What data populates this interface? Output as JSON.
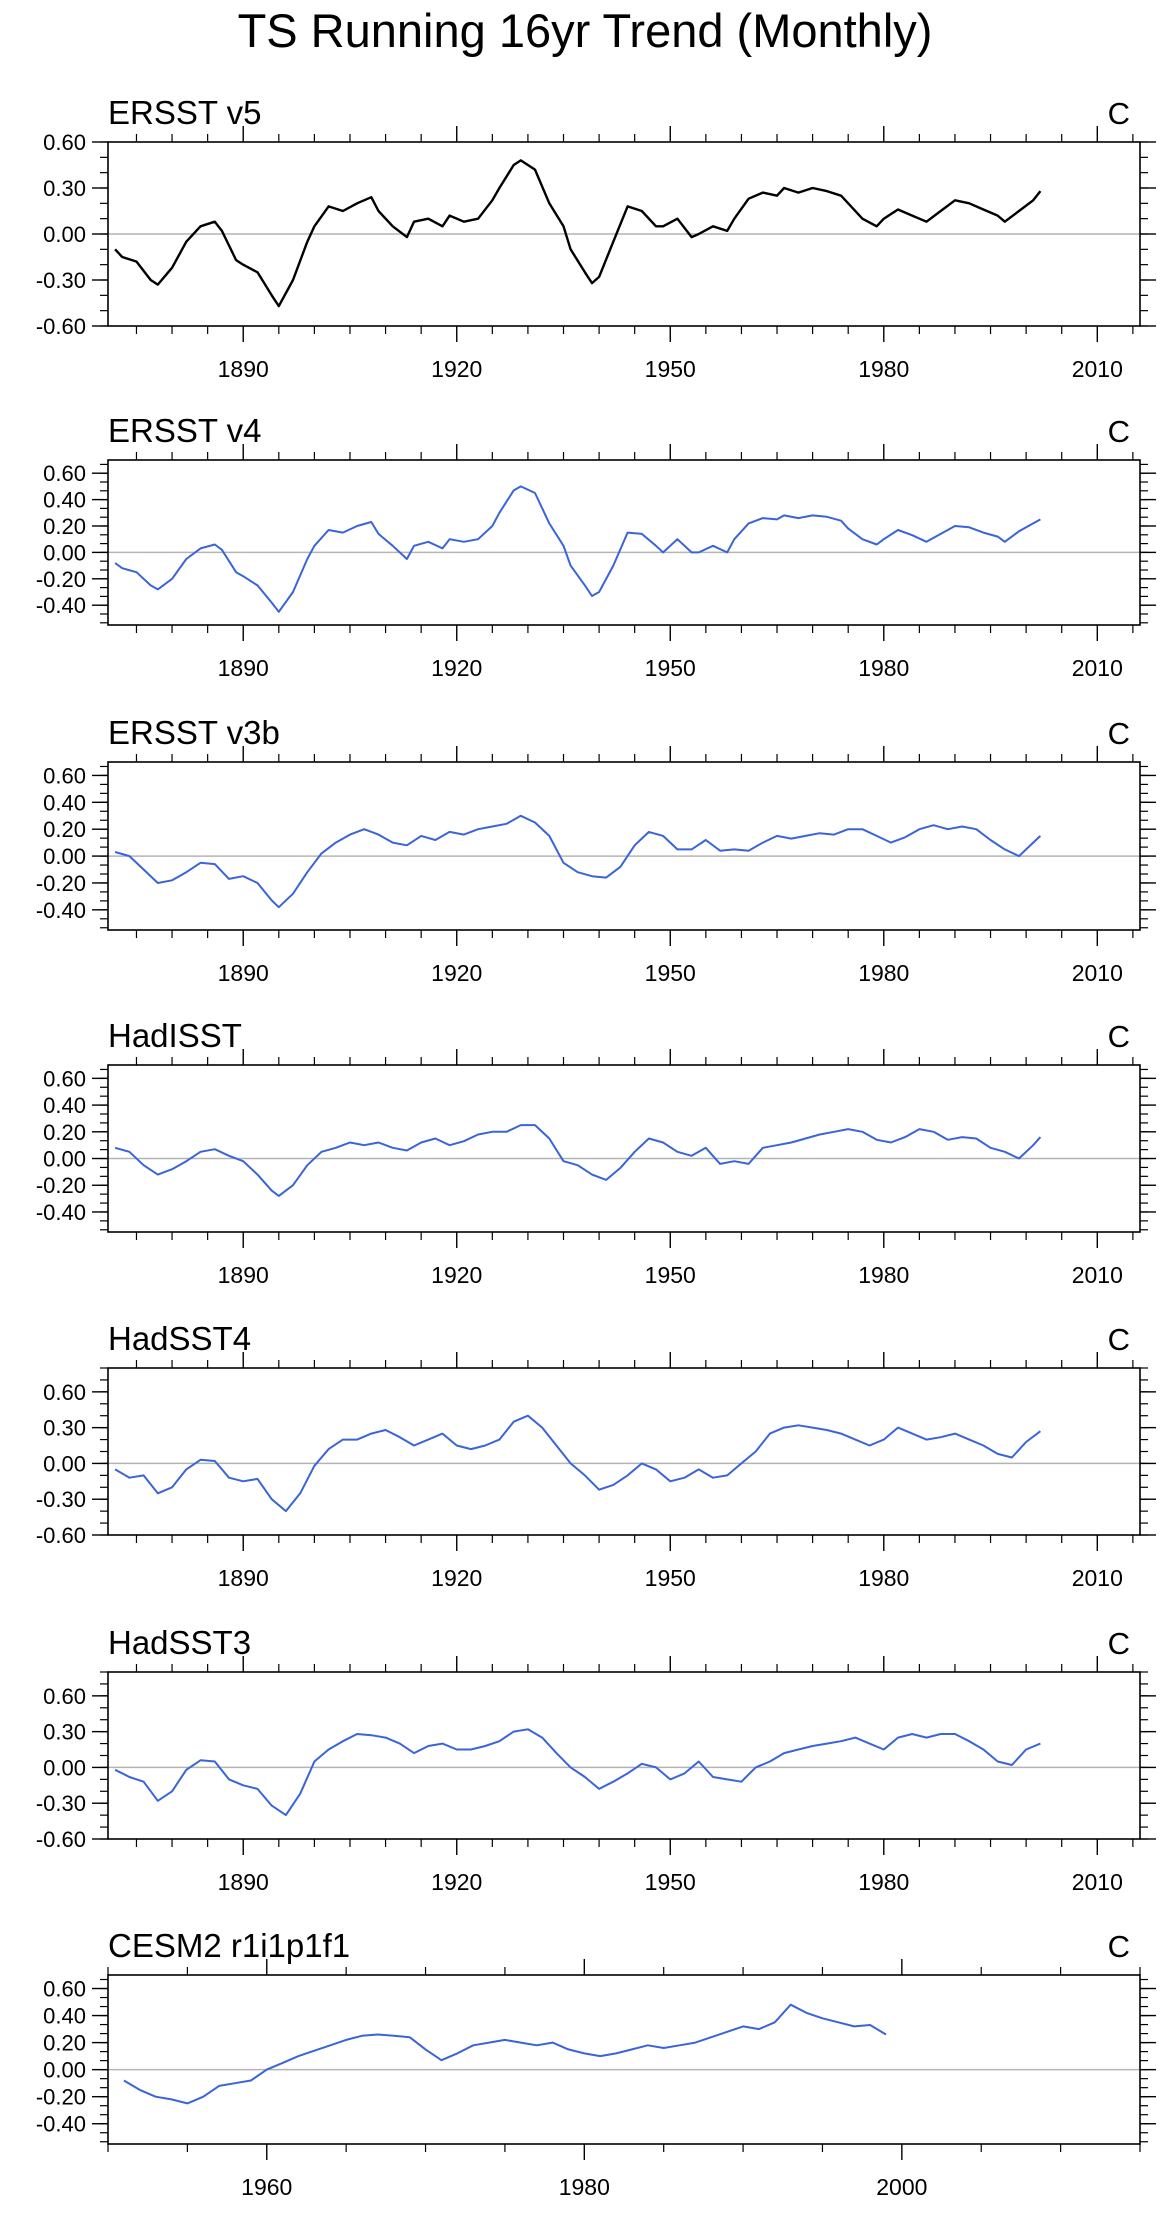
{
  "title": "TS Running 16yr Trend (Monthly)",
  "colors": {
    "first_series": "#000000",
    "other_series": "#3a64d8",
    "frame": "#000000",
    "zero_line": "#b4b4b4"
  },
  "chart_data": [
    {
      "type": "line",
      "title": "ERSST v5",
      "units": "C",
      "xlim": [
        1871,
        2016
      ],
      "ylim": [
        -0.6,
        0.6
      ],
      "xticks": [
        1890,
        1920,
        1950,
        1980,
        2010
      ],
      "yticks": [
        -0.6,
        -0.3,
        0.0,
        0.3,
        0.6
      ],
      "ytick_labels": [
        "-0.60",
        "-0.30",
        "0.00",
        "0.30",
        "0.60"
      ],
      "series_color": "first_series",
      "x": [
        1872,
        1873,
        1875,
        1877,
        1878,
        1880,
        1882,
        1884,
        1886,
        1887,
        1889,
        1890,
        1892,
        1894,
        1895,
        1897,
        1899,
        1900,
        1902,
        1904,
        1906,
        1908,
        1909,
        1911,
        1913,
        1914,
        1916,
        1918,
        1919,
        1921,
        1923,
        1925,
        1926,
        1928,
        1929,
        1931,
        1933,
        1935,
        1936,
        1938,
        1939,
        1940,
        1942,
        1944,
        1946,
        1948,
        1949,
        1951,
        1953,
        1954,
        1956,
        1958,
        1959,
        1961,
        1963,
        1965,
        1966,
        1968,
        1970,
        1972,
        1974,
        1975,
        1977,
        1979,
        1980,
        1982,
        1984,
        1986,
        1988,
        1990,
        1992,
        1994,
        1996,
        1997,
        1999,
        2001,
        2002
      ],
      "y": [
        -0.1,
        -0.15,
        -0.18,
        -0.3,
        -0.33,
        -0.22,
        -0.05,
        0.05,
        0.08,
        0.02,
        -0.17,
        -0.2,
        -0.25,
        -0.4,
        -0.47,
        -0.3,
        -0.05,
        0.05,
        0.18,
        0.15,
        0.2,
        0.24,
        0.15,
        0.05,
        -0.02,
        0.08,
        0.1,
        0.05,
        0.12,
        0.08,
        0.1,
        0.22,
        0.3,
        0.45,
        0.48,
        0.42,
        0.2,
        0.05,
        -0.1,
        -0.25,
        -0.32,
        -0.28,
        -0.05,
        0.18,
        0.15,
        0.05,
        0.05,
        0.1,
        -0.02,
        0.0,
        0.05,
        0.02,
        0.1,
        0.23,
        0.27,
        0.25,
        0.3,
        0.27,
        0.3,
        0.28,
        0.25,
        0.2,
        0.1,
        0.05,
        0.1,
        0.16,
        0.12,
        0.08,
        0.15,
        0.22,
        0.2,
        0.16,
        0.12,
        0.08,
        0.15,
        0.22,
        0.28
      ]
    },
    {
      "type": "line",
      "title": "ERSST v4",
      "units": "C",
      "xlim": [
        1871,
        2016
      ],
      "ylim": [
        -0.55,
        0.7
      ],
      "xticks": [
        1890,
        1920,
        1950,
        1980,
        2010
      ],
      "yticks": [
        -0.4,
        -0.2,
        0.0,
        0.2,
        0.4,
        0.6
      ],
      "ytick_labels": [
        "-0.40",
        "-0.20",
        "0.00",
        "0.20",
        "0.40",
        "0.60"
      ],
      "series_color": "other_series",
      "x": [
        1872,
        1873,
        1875,
        1877,
        1878,
        1880,
        1882,
        1884,
        1886,
        1887,
        1889,
        1890,
        1892,
        1894,
        1895,
        1897,
        1899,
        1900,
        1902,
        1904,
        1906,
        1908,
        1909,
        1911,
        1913,
        1914,
        1916,
        1918,
        1919,
        1921,
        1923,
        1925,
        1926,
        1928,
        1929,
        1931,
        1933,
        1935,
        1936,
        1938,
        1939,
        1940,
        1942,
        1944,
        1946,
        1948,
        1949,
        1951,
        1953,
        1954,
        1956,
        1958,
        1959,
        1961,
        1963,
        1965,
        1966,
        1968,
        1970,
        1972,
        1974,
        1975,
        1977,
        1979,
        1980,
        1982,
        1984,
        1986,
        1988,
        1990,
        1992,
        1994,
        1996,
        1997,
        1999,
        2001,
        2002
      ],
      "y": [
        -0.08,
        -0.12,
        -0.15,
        -0.25,
        -0.28,
        -0.2,
        -0.05,
        0.03,
        0.06,
        0.02,
        -0.15,
        -0.18,
        -0.25,
        -0.38,
        -0.45,
        -0.3,
        -0.05,
        0.05,
        0.17,
        0.15,
        0.2,
        0.23,
        0.14,
        0.05,
        -0.05,
        0.05,
        0.08,
        0.03,
        0.1,
        0.08,
        0.1,
        0.2,
        0.3,
        0.47,
        0.5,
        0.45,
        0.22,
        0.05,
        -0.1,
        -0.25,
        -0.33,
        -0.3,
        -0.1,
        0.15,
        0.14,
        0.05,
        0.0,
        0.1,
        0.0,
        0.0,
        0.05,
        0.0,
        0.1,
        0.22,
        0.26,
        0.25,
        0.28,
        0.26,
        0.28,
        0.27,
        0.24,
        0.18,
        0.1,
        0.06,
        0.1,
        0.17,
        0.13,
        0.08,
        0.14,
        0.2,
        0.19,
        0.15,
        0.12,
        0.08,
        0.16,
        0.22,
        0.25
      ]
    },
    {
      "type": "line",
      "title": "ERSST v3b",
      "units": "C",
      "xlim": [
        1871,
        2016
      ],
      "ylim": [
        -0.55,
        0.7
      ],
      "xticks": [
        1890,
        1920,
        1950,
        1980,
        2010
      ],
      "yticks": [
        -0.4,
        -0.2,
        0.0,
        0.2,
        0.4,
        0.6
      ],
      "ytick_labels": [
        "-0.40",
        "-0.20",
        "0.00",
        "0.20",
        "0.40",
        "0.60"
      ],
      "series_color": "other_series",
      "x": [
        1872,
        1874,
        1876,
        1878,
        1880,
        1882,
        1884,
        1886,
        1888,
        1890,
        1892,
        1894,
        1895,
        1897,
        1899,
        1901,
        1903,
        1905,
        1907,
        1909,
        1911,
        1913,
        1915,
        1917,
        1919,
        1921,
        1923,
        1925,
        1927,
        1929,
        1931,
        1933,
        1935,
        1937,
        1939,
        1941,
        1943,
        1945,
        1947,
        1949,
        1951,
        1953,
        1955,
        1957,
        1959,
        1961,
        1963,
        1965,
        1967,
        1969,
        1971,
        1973,
        1975,
        1977,
        1979,
        1981,
        1983,
        1985,
        1987,
        1989,
        1991,
        1993,
        1995,
        1997,
        1999,
        2001,
        2002
      ],
      "y": [
        0.03,
        0.0,
        -0.1,
        -0.2,
        -0.18,
        -0.12,
        -0.05,
        -0.06,
        -0.17,
        -0.15,
        -0.2,
        -0.33,
        -0.38,
        -0.28,
        -0.12,
        0.02,
        0.1,
        0.16,
        0.2,
        0.16,
        0.1,
        0.08,
        0.15,
        0.12,
        0.18,
        0.16,
        0.2,
        0.22,
        0.24,
        0.3,
        0.25,
        0.15,
        -0.05,
        -0.12,
        -0.15,
        -0.16,
        -0.08,
        0.08,
        0.18,
        0.15,
        0.05,
        0.05,
        0.12,
        0.04,
        0.05,
        0.04,
        0.1,
        0.15,
        0.13,
        0.15,
        0.17,
        0.16,
        0.2,
        0.2,
        0.15,
        0.1,
        0.14,
        0.2,
        0.23,
        0.2,
        0.22,
        0.2,
        0.12,
        0.05,
        0.0,
        0.1,
        0.15
      ]
    },
    {
      "type": "line",
      "title": "HadISST",
      "units": "C",
      "xlim": [
        1871,
        2016
      ],
      "ylim": [
        -0.55,
        0.7
      ],
      "xticks": [
        1890,
        1920,
        1950,
        1980,
        2010
      ],
      "yticks": [
        -0.4,
        -0.2,
        0.0,
        0.2,
        0.4,
        0.6
      ],
      "ytick_labels": [
        "-0.40",
        "-0.20",
        "0.00",
        "0.20",
        "0.40",
        "0.60"
      ],
      "series_color": "other_series",
      "x": [
        1872,
        1874,
        1876,
        1878,
        1880,
        1882,
        1884,
        1886,
        1888,
        1890,
        1892,
        1894,
        1895,
        1897,
        1899,
        1901,
        1903,
        1905,
        1907,
        1909,
        1911,
        1913,
        1915,
        1917,
        1919,
        1921,
        1923,
        1925,
        1927,
        1929,
        1931,
        1933,
        1935,
        1937,
        1939,
        1941,
        1943,
        1945,
        1947,
        1949,
        1951,
        1953,
        1955,
        1957,
        1959,
        1961,
        1963,
        1965,
        1967,
        1969,
        1971,
        1973,
        1975,
        1977,
        1979,
        1981,
        1983,
        1985,
        1987,
        1989,
        1991,
        1993,
        1995,
        1997,
        1999,
        2001,
        2002
      ],
      "y": [
        0.08,
        0.05,
        -0.05,
        -0.12,
        -0.08,
        -0.02,
        0.05,
        0.07,
        0.02,
        -0.02,
        -0.12,
        -0.24,
        -0.28,
        -0.2,
        -0.05,
        0.05,
        0.08,
        0.12,
        0.1,
        0.12,
        0.08,
        0.06,
        0.12,
        0.15,
        0.1,
        0.13,
        0.18,
        0.2,
        0.2,
        0.25,
        0.25,
        0.15,
        -0.02,
        -0.05,
        -0.12,
        -0.16,
        -0.07,
        0.05,
        0.15,
        0.12,
        0.05,
        0.02,
        0.08,
        -0.04,
        -0.02,
        -0.04,
        0.08,
        0.1,
        0.12,
        0.15,
        0.18,
        0.2,
        0.22,
        0.2,
        0.14,
        0.12,
        0.16,
        0.22,
        0.2,
        0.14,
        0.16,
        0.15,
        0.08,
        0.05,
        0.0,
        0.1,
        0.16
      ]
    },
    {
      "type": "line",
      "title": "HadSST4",
      "units": "C",
      "xlim": [
        1871,
        2016
      ],
      "ylim": [
        -0.6,
        0.8
      ],
      "xticks": [
        1890,
        1920,
        1950,
        1980,
        2010
      ],
      "yticks": [
        -0.6,
        -0.3,
        0.0,
        0.3,
        0.6
      ],
      "ytick_labels": [
        "-0.60",
        "-0.30",
        "0.00",
        "0.30",
        "0.60"
      ],
      "series_color": "other_series",
      "x": [
        1872,
        1874,
        1876,
        1878,
        1880,
        1882,
        1884,
        1886,
        1888,
        1890,
        1892,
        1894,
        1896,
        1898,
        1900,
        1902,
        1904,
        1906,
        1908,
        1910,
        1912,
        1914,
        1916,
        1918,
        1920,
        1922,
        1924,
        1926,
        1928,
        1930,
        1932,
        1934,
        1936,
        1938,
        1940,
        1942,
        1944,
        1946,
        1948,
        1950,
        1952,
        1954,
        1956,
        1958,
        1960,
        1962,
        1964,
        1966,
        1968,
        1970,
        1972,
        1974,
        1976,
        1978,
        1980,
        1982,
        1984,
        1986,
        1988,
        1990,
        1992,
        1994,
        1996,
        1998,
        2000,
        2002
      ],
      "y": [
        -0.05,
        -0.12,
        -0.1,
        -0.25,
        -0.2,
        -0.05,
        0.03,
        0.02,
        -0.12,
        -0.15,
        -0.13,
        -0.3,
        -0.4,
        -0.25,
        -0.02,
        0.12,
        0.2,
        0.2,
        0.25,
        0.28,
        0.22,
        0.15,
        0.2,
        0.25,
        0.15,
        0.12,
        0.15,
        0.2,
        0.35,
        0.4,
        0.3,
        0.15,
        0.0,
        -0.1,
        -0.22,
        -0.18,
        -0.1,
        0.0,
        -0.05,
        -0.15,
        -0.12,
        -0.05,
        -0.12,
        -0.1,
        0.0,
        0.1,
        0.25,
        0.3,
        0.32,
        0.3,
        0.28,
        0.25,
        0.2,
        0.15,
        0.2,
        0.3,
        0.25,
        0.2,
        0.22,
        0.25,
        0.2,
        0.15,
        0.08,
        0.05,
        0.18,
        0.27
      ]
    },
    {
      "type": "line",
      "title": "HadSST3",
      "units": "C",
      "xlim": [
        1871,
        2016
      ],
      "ylim": [
        -0.6,
        0.8
      ],
      "xticks": [
        1890,
        1920,
        1950,
        1980,
        2010
      ],
      "yticks": [
        -0.6,
        -0.3,
        0.0,
        0.3,
        0.6
      ],
      "ytick_labels": [
        "-0.60",
        "-0.30",
        "0.00",
        "0.30",
        "0.60"
      ],
      "series_color": "other_series",
      "x": [
        1872,
        1874,
        1876,
        1878,
        1880,
        1882,
        1884,
        1886,
        1888,
        1890,
        1892,
        1894,
        1896,
        1898,
        1900,
        1902,
        1904,
        1906,
        1908,
        1910,
        1912,
        1914,
        1916,
        1918,
        1920,
        1922,
        1924,
        1926,
        1928,
        1930,
        1932,
        1934,
        1936,
        1938,
        1940,
        1942,
        1944,
        1946,
        1948,
        1950,
        1952,
        1954,
        1956,
        1958,
        1960,
        1962,
        1964,
        1966,
        1968,
        1970,
        1972,
        1974,
        1976,
        1978,
        1980,
        1982,
        1984,
        1986,
        1988,
        1990,
        1992,
        1994,
        1996,
        1998,
        2000,
        2002
      ],
      "y": [
        -0.02,
        -0.08,
        -0.12,
        -0.28,
        -0.2,
        -0.02,
        0.06,
        0.05,
        -0.1,
        -0.15,
        -0.18,
        -0.32,
        -0.4,
        -0.22,
        0.05,
        0.15,
        0.22,
        0.28,
        0.27,
        0.25,
        0.2,
        0.12,
        0.18,
        0.2,
        0.15,
        0.15,
        0.18,
        0.22,
        0.3,
        0.32,
        0.25,
        0.12,
        0.0,
        -0.08,
        -0.18,
        -0.12,
        -0.05,
        0.03,
        0.0,
        -0.1,
        -0.05,
        0.05,
        -0.08,
        -0.1,
        -0.12,
        0.0,
        0.05,
        0.12,
        0.15,
        0.18,
        0.2,
        0.22,
        0.25,
        0.2,
        0.15,
        0.25,
        0.28,
        0.25,
        0.28,
        0.28,
        0.22,
        0.15,
        0.05,
        0.02,
        0.15,
        0.2
      ]
    },
    {
      "type": "line",
      "title": "CESM2 r1i1p1f1",
      "units": "C",
      "xlim": [
        1950,
        2015
      ],
      "ylim": [
        -0.55,
        0.7
      ],
      "xticks": [
        1960,
        1980,
        2000
      ],
      "yticks": [
        -0.4,
        -0.2,
        0.0,
        0.2,
        0.4,
        0.6
      ],
      "ytick_labels": [
        "-0.40",
        "-0.20",
        "0.00",
        "0.20",
        "0.40",
        "0.60"
      ],
      "series_color": "other_series",
      "x": [
        1951,
        1952,
        1953,
        1954,
        1955,
        1956,
        1957,
        1958,
        1959,
        1960,
        1961,
        1962,
        1963,
        1964,
        1965,
        1966,
        1967,
        1968,
        1969,
        1970,
        1971,
        1972,
        1973,
        1974,
        1975,
        1976,
        1977,
        1978,
        1979,
        1980,
        1981,
        1982,
        1983,
        1984,
        1985,
        1986,
        1987,
        1988,
        1989,
        1990,
        1991,
        1992,
        1993,
        1994,
        1995,
        1996,
        1997,
        1998,
        1999
      ],
      "y": [
        -0.08,
        -0.15,
        -0.2,
        -0.22,
        -0.25,
        -0.2,
        -0.12,
        -0.1,
        -0.08,
        0.0,
        0.05,
        0.1,
        0.14,
        0.18,
        0.22,
        0.25,
        0.26,
        0.25,
        0.24,
        0.15,
        0.07,
        0.12,
        0.18,
        0.2,
        0.22,
        0.2,
        0.18,
        0.2,
        0.15,
        0.12,
        0.1,
        0.12,
        0.15,
        0.18,
        0.16,
        0.18,
        0.2,
        0.24,
        0.28,
        0.32,
        0.3,
        0.35,
        0.48,
        0.42,
        0.38,
        0.35,
        0.32,
        0.33,
        0.26
      ]
    }
  ]
}
